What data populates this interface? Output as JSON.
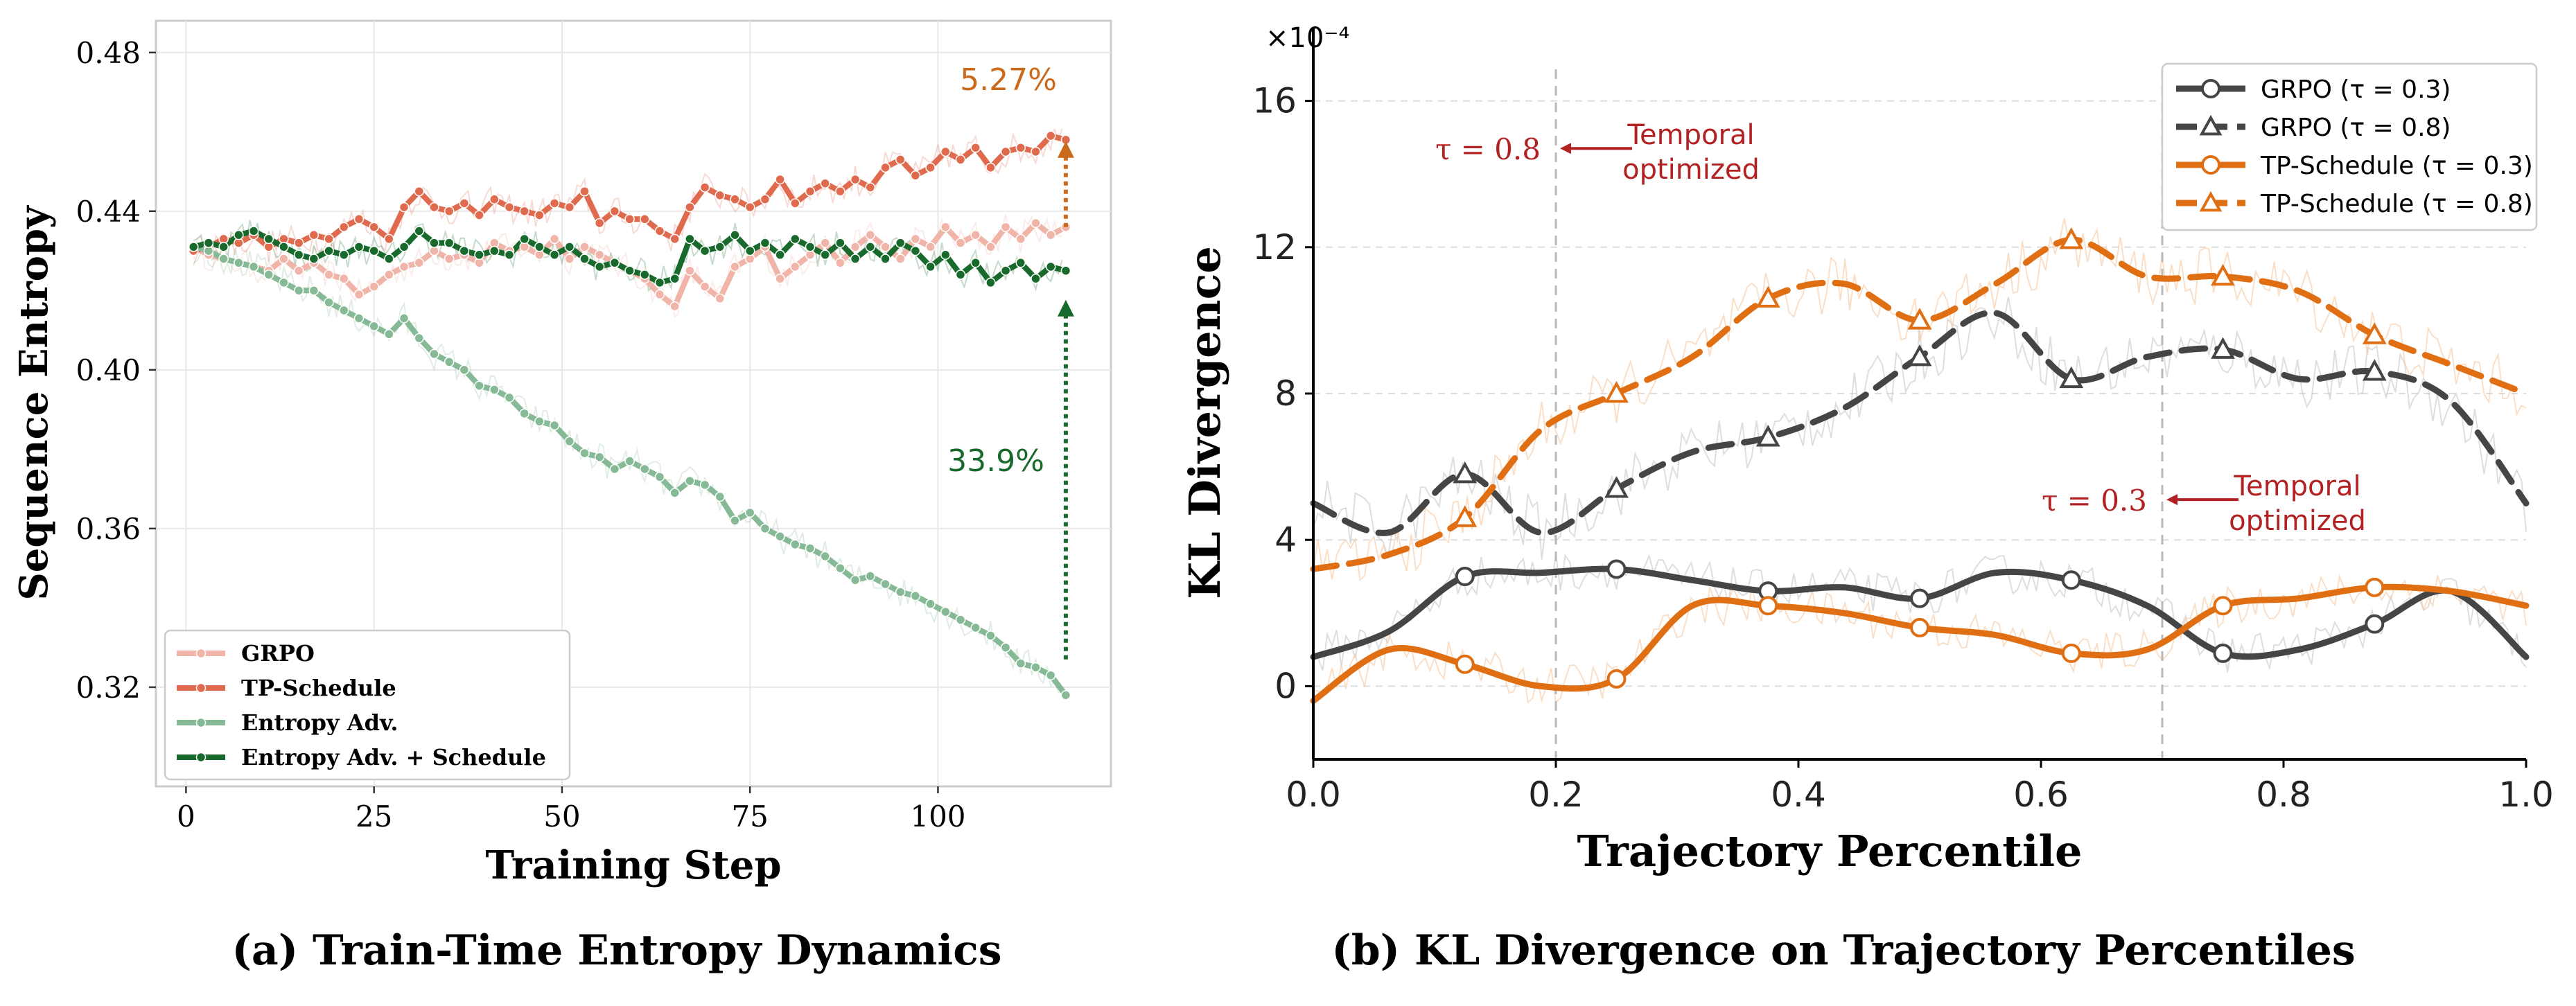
{
  "chart_data": [
    {
      "type": "line",
      "title": "(a) Train-Time Entropy Dynamics",
      "xlabel": "Training Step",
      "ylabel": "Sequence Entropy",
      "xlim": [
        -4,
        123
      ],
      "ylim": [
        0.295,
        0.488
      ],
      "xticks": [
        0,
        25,
        50,
        75,
        100
      ],
      "yticks": [
        0.32,
        0.36,
        0.4,
        0.44,
        0.48
      ],
      "ytick_labels": [
        "0.32",
        "0.36",
        "0.40",
        "0.44",
        "0.48"
      ],
      "grid": true,
      "legend_position": "lower-left",
      "x": [
        1,
        3,
        5,
        7,
        9,
        11,
        13,
        15,
        17,
        19,
        21,
        23,
        25,
        27,
        29,
        31,
        33,
        35,
        37,
        39,
        41,
        43,
        45,
        47,
        49,
        51,
        53,
        55,
        57,
        59,
        61,
        63,
        65,
        67,
        69,
        71,
        73,
        75,
        77,
        79,
        81,
        83,
        85,
        87,
        89,
        91,
        93,
        95,
        97,
        99,
        101,
        103,
        105,
        107,
        109,
        111,
        113,
        115,
        117
      ],
      "series": [
        {
          "name": "GRPO",
          "color": "#f0b4a8",
          "values": [
            0.431,
            0.429,
            0.428,
            0.427,
            0.426,
            0.425,
            0.428,
            0.425,
            0.427,
            0.424,
            0.423,
            0.419,
            0.421,
            0.424,
            0.426,
            0.427,
            0.43,
            0.428,
            0.429,
            0.427,
            0.432,
            0.43,
            0.431,
            0.429,
            0.433,
            0.428,
            0.431,
            0.429,
            0.427,
            0.425,
            0.423,
            0.419,
            0.416,
            0.425,
            0.421,
            0.418,
            0.426,
            0.428,
            0.431,
            0.423,
            0.426,
            0.429,
            0.432,
            0.427,
            0.431,
            0.434,
            0.431,
            0.428,
            0.433,
            0.431,
            0.436,
            0.432,
            0.434,
            0.431,
            0.436,
            0.433,
            0.437,
            0.434,
            0.436
          ]
        },
        {
          "name": "TP-Schedule",
          "color": "#e06a4e",
          "values": [
            0.43,
            0.431,
            0.433,
            0.432,
            0.434,
            0.431,
            0.433,
            0.432,
            0.434,
            0.433,
            0.436,
            0.438,
            0.436,
            0.433,
            0.441,
            0.445,
            0.441,
            0.44,
            0.442,
            0.439,
            0.443,
            0.441,
            0.44,
            0.439,
            0.442,
            0.441,
            0.445,
            0.437,
            0.44,
            0.438,
            0.438,
            0.435,
            0.433,
            0.441,
            0.446,
            0.444,
            0.443,
            0.441,
            0.443,
            0.448,
            0.442,
            0.445,
            0.447,
            0.445,
            0.448,
            0.446,
            0.451,
            0.453,
            0.449,
            0.451,
            0.455,
            0.453,
            0.456,
            0.451,
            0.455,
            0.456,
            0.455,
            0.459,
            0.458
          ]
        },
        {
          "name": "Entropy Adv.",
          "color": "#86b995",
          "values": [
            0.431,
            0.43,
            0.428,
            0.427,
            0.426,
            0.424,
            0.422,
            0.42,
            0.42,
            0.417,
            0.415,
            0.413,
            0.411,
            0.409,
            0.413,
            0.408,
            0.404,
            0.402,
            0.4,
            0.396,
            0.395,
            0.393,
            0.389,
            0.387,
            0.386,
            0.382,
            0.379,
            0.378,
            0.375,
            0.377,
            0.375,
            0.373,
            0.369,
            0.372,
            0.371,
            0.368,
            0.362,
            0.364,
            0.36,
            0.358,
            0.356,
            0.355,
            0.353,
            0.35,
            0.347,
            0.348,
            0.346,
            0.344,
            0.343,
            0.341,
            0.339,
            0.337,
            0.335,
            0.333,
            0.33,
            0.326,
            0.325,
            0.323,
            0.318
          ]
        },
        {
          "name": "Entropy Adv. + Schedule",
          "color": "#176a2c",
          "values": [
            0.431,
            0.432,
            0.431,
            0.434,
            0.435,
            0.433,
            0.431,
            0.429,
            0.428,
            0.43,
            0.429,
            0.431,
            0.43,
            0.428,
            0.431,
            0.435,
            0.432,
            0.432,
            0.43,
            0.429,
            0.43,
            0.429,
            0.433,
            0.431,
            0.429,
            0.431,
            0.428,
            0.426,
            0.427,
            0.425,
            0.424,
            0.422,
            0.423,
            0.433,
            0.43,
            0.431,
            0.434,
            0.43,
            0.432,
            0.429,
            0.433,
            0.431,
            0.429,
            0.432,
            0.428,
            0.431,
            0.428,
            0.432,
            0.43,
            0.426,
            0.429,
            0.424,
            0.427,
            0.422,
            0.425,
            0.427,
            0.423,
            0.426,
            0.425
          ]
        }
      ],
      "annotations": [
        {
          "text": "5.27%",
          "color": "#cc6a1c",
          "x": 117,
          "y_from": 0.436,
          "y_to": 0.458
        },
        {
          "text": "33.9%",
          "color": "#176a2c",
          "x": 117,
          "y_from": 0.327,
          "y_to": 0.418
        }
      ]
    },
    {
      "type": "line",
      "title": "(b) KL Divergence on Trajectory Percentiles",
      "xlabel": "Trajectory Percentile",
      "ylabel": "KL Divergence",
      "scale_label": "×10⁻⁴",
      "xlim": [
        0.0,
        1.0
      ],
      "ylim": [
        -2,
        18
      ],
      "xticks": [
        0.0,
        0.2,
        0.4,
        0.6,
        0.8,
        1.0
      ],
      "xtick_labels": [
        "0.0",
        "0.2",
        "0.4",
        "0.6",
        "0.8",
        "1.0"
      ],
      "yticks": [
        0,
        4,
        8,
        12,
        16
      ],
      "ytick_labels": [
        "0",
        "4",
        "8",
        "12",
        "16"
      ],
      "grid": true,
      "legend_position": "top-right",
      "x": [
        0.0,
        0.0625,
        0.125,
        0.1875,
        0.25,
        0.3125,
        0.375,
        0.4375,
        0.5,
        0.5625,
        0.625,
        0.6875,
        0.75,
        0.8125,
        0.875,
        0.9375,
        1.0
      ],
      "series": [
        {
          "name": "GRPO (τ = 0.3)",
          "color": "#454545",
          "dash": "solid",
          "marker": "circle",
          "values": [
            0.8,
            1.5,
            3.0,
            3.1,
            3.2,
            2.9,
            2.6,
            2.7,
            2.4,
            3.1,
            2.9,
            2.2,
            0.9,
            1.0,
            1.7,
            2.6,
            0.8
          ]
        },
        {
          "name": "GRPO (τ = 0.8)",
          "color": "#454545",
          "dash": "dashed",
          "marker": "triangle",
          "values": [
            5.0,
            4.2,
            5.8,
            4.2,
            5.4,
            6.4,
            6.8,
            7.6,
            9.0,
            10.2,
            8.4,
            9.0,
            9.2,
            8.4,
            8.6,
            7.8,
            5.0
          ]
        },
        {
          "name": "TP-Schedule (τ = 0.3)",
          "color": "#e06f14",
          "dash": "solid",
          "marker": "circle",
          "values": [
            -0.4,
            1.0,
            0.6,
            0.0,
            0.2,
            2.2,
            2.2,
            2.0,
            1.6,
            1.4,
            0.9,
            1.0,
            2.2,
            2.4,
            2.7,
            2.6,
            2.2
          ]
        },
        {
          "name": "TP-Schedule (τ = 0.8)",
          "color": "#e06f14",
          "dash": "dashed",
          "marker": "triangle",
          "values": [
            3.2,
            3.6,
            4.6,
            7.0,
            8.0,
            9.0,
            10.6,
            11.0,
            10.0,
            11.0,
            12.2,
            11.2,
            11.2,
            10.8,
            9.6,
            8.8,
            8.0
          ]
        }
      ],
      "vlines": [
        0.2,
        0.7
      ],
      "annotations": [
        {
          "label": "τ = 0.8",
          "text_lines": [
            "Temporal",
            "optimized"
          ],
          "color": "#b22222",
          "x": 0.2,
          "y": 14.7
        },
        {
          "label": "τ = 0.3",
          "text_lines": [
            "Temporal",
            "optimized"
          ],
          "color": "#b22222",
          "x": 0.7,
          "y": 5.1
        }
      ]
    }
  ]
}
